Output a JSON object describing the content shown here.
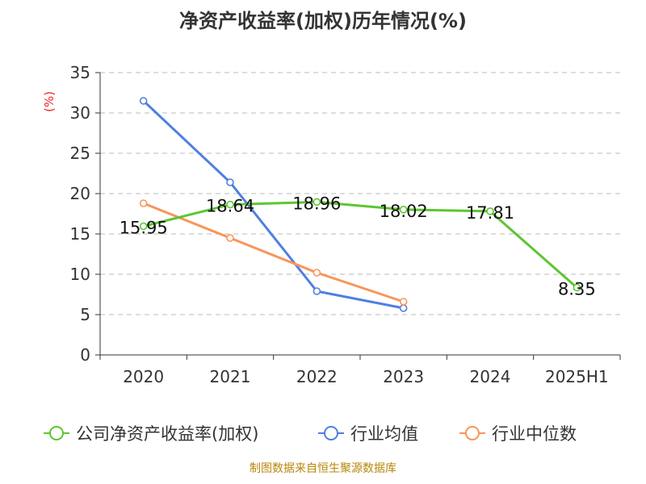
{
  "title": "净资产收益率(加权)历年情况(%)",
  "source": "制图数据来自恒生聚源数据库",
  "colors": {
    "company": "#5cc630",
    "industry_avg": "#4f7fe0",
    "industry_median": "#f8955a",
    "unit": "#e8262b",
    "grid": "#bbbbbb",
    "axis": "#333333"
  },
  "chart_data": {
    "type": "line",
    "title": "净资产收益率(加权)历年情况(%)",
    "ylabel": "(%)",
    "xlabel": "",
    "categories": [
      "2020",
      "2021",
      "2022",
      "2023",
      "2024",
      "2025H1"
    ],
    "ylim": [
      0,
      35
    ],
    "yticks": [
      0,
      5,
      10,
      15,
      20,
      25,
      30,
      35
    ],
    "grid": "horizontal dashed",
    "legend_position": "bottom",
    "series": [
      {
        "name": "公司净资产收益率(加权)",
        "key": "company",
        "values": [
          15.95,
          18.64,
          18.96,
          18.02,
          17.81,
          8.35
        ],
        "labels": [
          "15.95",
          "18.64",
          "18.96",
          "18.02",
          "17.81",
          "8.35"
        ],
        "show_labels": true
      },
      {
        "name": "行业均值",
        "key": "industry_avg",
        "values": [
          31.5,
          21.4,
          7.9,
          5.8,
          null,
          null
        ],
        "show_labels": false
      },
      {
        "name": "行业中位数",
        "key": "industry_median",
        "values": [
          18.8,
          14.5,
          10.2,
          6.6,
          null,
          null
        ],
        "show_labels": false
      }
    ]
  }
}
